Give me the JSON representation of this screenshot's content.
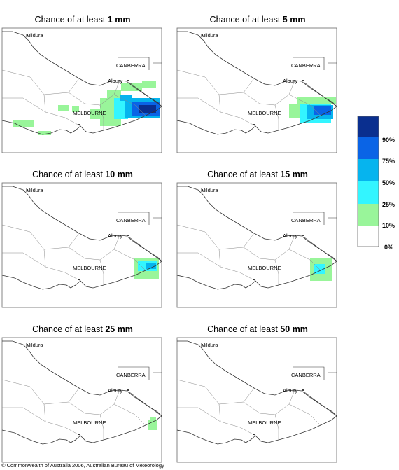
{
  "panels": [
    {
      "title": "Chance of at least",
      "amount": "1 mm"
    },
    {
      "title": "Chance of at least",
      "amount": "5 mm"
    },
    {
      "title": "Chance of at least",
      "amount": "10 mm"
    },
    {
      "title": "Chance of at least",
      "amount": "15 mm"
    },
    {
      "title": "Chance of at least",
      "amount": "25 mm"
    },
    {
      "title": "Chance of at least",
      "amount": "50 mm"
    }
  ],
  "places": [
    "Mildura",
    "CANBERRA",
    "Albury",
    "MELBOURNE"
  ],
  "legend": {
    "labels": [
      "90%",
      "75%",
      "50%",
      "25%",
      "10%",
      "0%"
    ]
  },
  "footer": "© Commonwealth of Australia 2006, Australian Bureau of Meteorology"
}
